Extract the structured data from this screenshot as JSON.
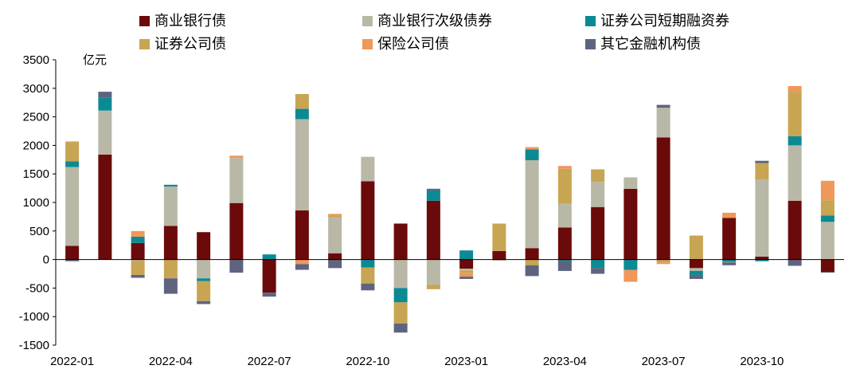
{
  "chart_data": {
    "type": "bar",
    "stacked": true,
    "unit": "亿元",
    "ylim": [
      -1500,
      3500
    ],
    "yticks": [
      3500,
      3000,
      2500,
      2000,
      1500,
      1000,
      500,
      0,
      -500,
      -1000,
      -1500
    ],
    "grid": false,
    "legend_position": "top",
    "x_tick_labels": [
      "2022-01",
      "2022-04",
      "2022-07",
      "2022-10",
      "2023-01",
      "2023-04",
      "2023-07",
      "2023-10"
    ],
    "x_tick_every": 3,
    "categories": [
      "2022-01",
      "2022-02",
      "2022-03",
      "2022-04",
      "2022-05",
      "2022-06",
      "2022-07",
      "2022-08",
      "2022-09",
      "2022-10",
      "2022-11",
      "2022-12",
      "2023-01",
      "2023-02",
      "2023-03",
      "2023-04",
      "2023-05",
      "2023-06",
      "2023-07",
      "2023-08",
      "2023-09",
      "2023-10",
      "2023-11",
      "2023-12"
    ],
    "series": [
      {
        "name": "商业银行债",
        "color": "#6b0a0a",
        "values": [
          240,
          1840,
          290,
          590,
          480,
          990,
          -580,
          860,
          110,
          1370,
          630,
          1030,
          -160,
          150,
          200,
          560,
          920,
          1240,
          2140,
          -150,
          730,
          50,
          1030,
          -220
        ]
      },
      {
        "name": "商业银行次级债券",
        "color": "#b9b8a6",
        "values": [
          1380,
          770,
          -20,
          690,
          -330,
          790,
          0,
          1600,
          630,
          430,
          -500,
          -440,
          -30,
          -20,
          1540,
          420,
          440,
          200,
          520,
          -50,
          0,
          1350,
          970,
          660
        ]
      },
      {
        "name": "证券公司短期融资券",
        "color": "#0c8a94",
        "values": [
          100,
          230,
          110,
          30,
          -50,
          0,
          90,
          180,
          0,
          -140,
          -250,
          180,
          160,
          0,
          190,
          -20,
          -150,
          -180,
          0,
          -70,
          -40,
          -30,
          160,
          110
        ]
      },
      {
        "name": "证券公司债",
        "color": "#c7a552",
        "values": [
          340,
          0,
          -250,
          -330,
          -350,
          0,
          0,
          260,
          30,
          -280,
          -370,
          -80,
          -50,
          480,
          -100,
          610,
          220,
          0,
          -50,
          420,
          -10,
          290,
          780,
          270
        ]
      },
      {
        "name": "保险公司债",
        "color": "#f0975a",
        "values": [
          10,
          0,
          100,
          0,
          0,
          40,
          0,
          -80,
          30,
          0,
          0,
          0,
          -60,
          0,
          40,
          50,
          0,
          -210,
          -30,
          0,
          90,
          0,
          100,
          340
        ]
      },
      {
        "name": "其它金融机构债",
        "color": "#5e6480",
        "values": [
          -30,
          100,
          -50,
          -270,
          -50,
          -230,
          -70,
          -100,
          -150,
          -120,
          -160,
          30,
          -40,
          0,
          -190,
          -180,
          -100,
          0,
          50,
          -70,
          -50,
          40,
          -110,
          -10
        ]
      }
    ]
  }
}
